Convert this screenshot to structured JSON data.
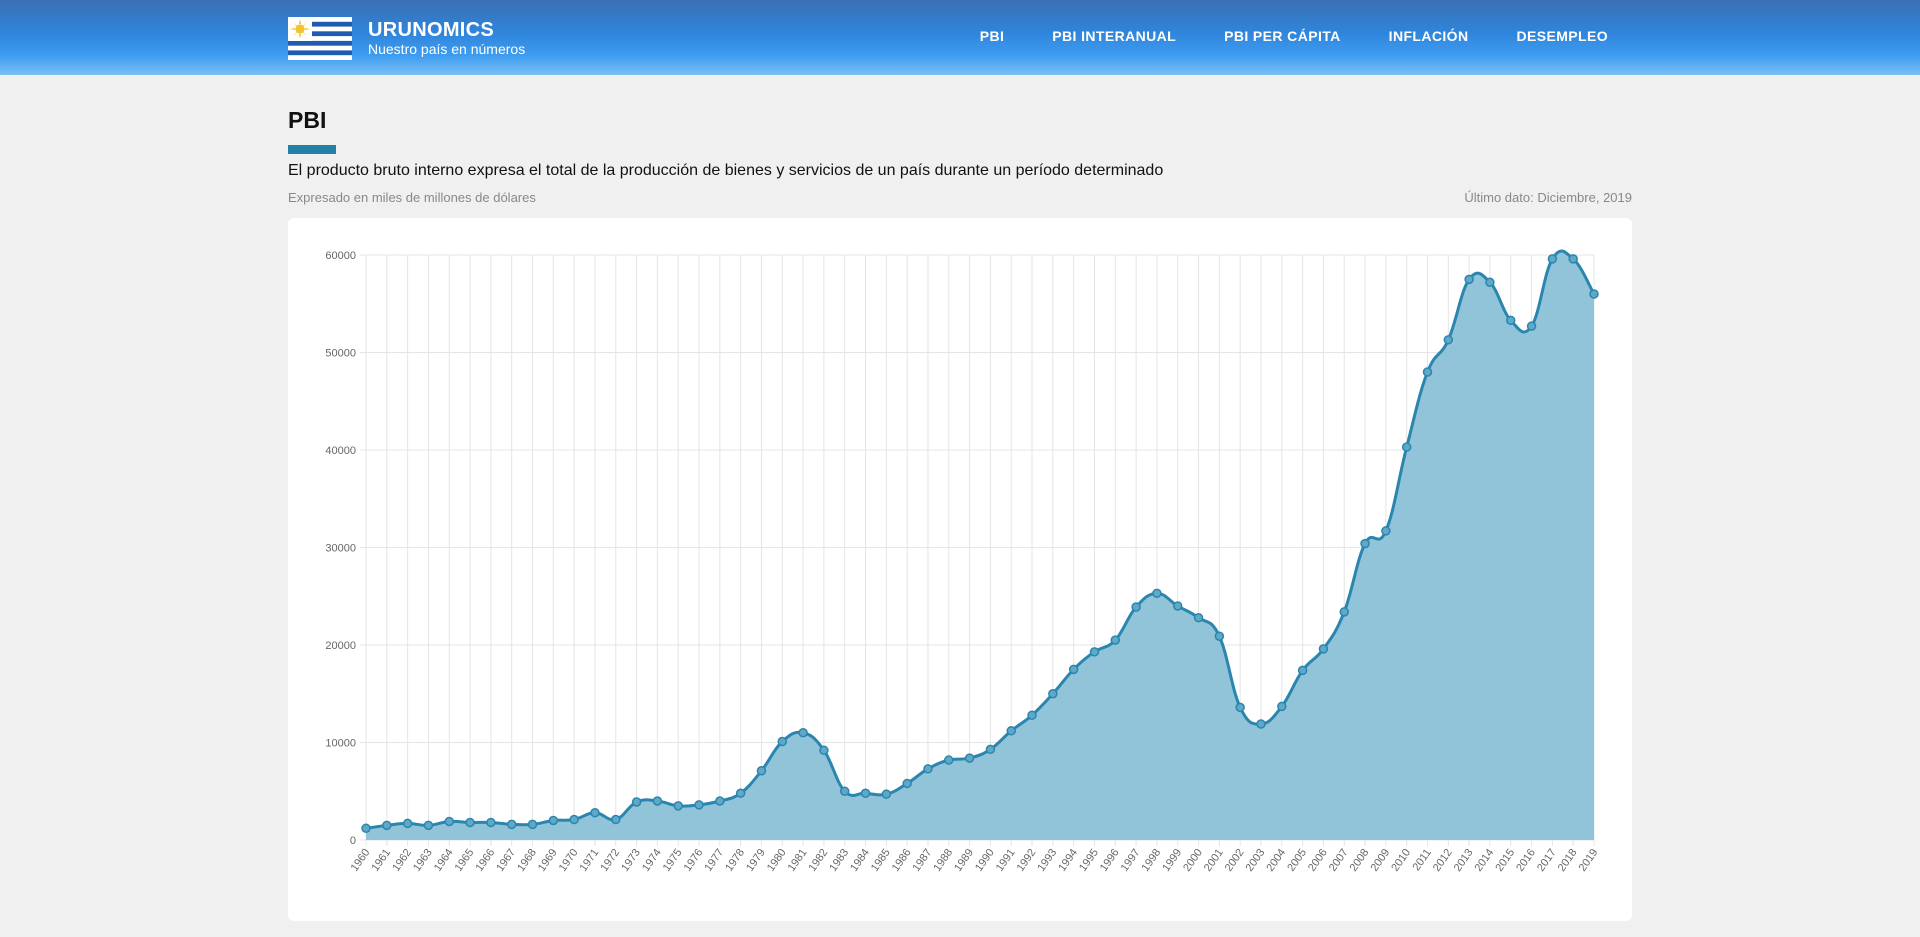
{
  "header": {
    "brand_name": "URUNOMICS",
    "brand_tagline": "Nuestro país en números",
    "nav": [
      {
        "label": "PBI"
      },
      {
        "label": "PBI INTERANUAL"
      },
      {
        "label": "PBI PER CÁPITA"
      },
      {
        "label": "INFLACIÓN"
      },
      {
        "label": "DESEMPLEO"
      }
    ]
  },
  "page": {
    "title": "PBI",
    "description": "El producto bruto interno expresa el total de la producción de bienes y servicios de un país durante un período determinado",
    "unit_note": "Expresado en miles de millones de dólares",
    "last_data": "Último dato: Diciembre, 2019"
  },
  "colors": {
    "accent": "#2380a8",
    "line": "#2a86ae",
    "fill": "#8bc1d6"
  },
  "chart_data": {
    "type": "area",
    "title": "",
    "xlabel": "",
    "ylabel": "",
    "ylim": [
      0,
      60000
    ],
    "yticks": [
      0,
      10000,
      20000,
      30000,
      40000,
      50000,
      60000
    ],
    "grid": true,
    "x": [
      "1960",
      "1961",
      "1962",
      "1963",
      "1964",
      "1965",
      "1966",
      "1967",
      "1968",
      "1969",
      "1970",
      "1971",
      "1972",
      "1973",
      "1974",
      "1975",
      "1976",
      "1977",
      "1978",
      "1979",
      "1980",
      "1981",
      "1982",
      "1983",
      "1984",
      "1985",
      "1986",
      "1987",
      "1988",
      "1989",
      "1990",
      "1991",
      "1992",
      "1993",
      "1994",
      "1995",
      "1996",
      "1997",
      "1998",
      "1999",
      "2000",
      "2001",
      "2002",
      "2003",
      "2004",
      "2005",
      "2006",
      "2007",
      "2008",
      "2009",
      "2010",
      "2011",
      "2012",
      "2013",
      "2014",
      "2015",
      "2016",
      "2017",
      "2018",
      "2019"
    ],
    "series": [
      {
        "values": [
          1200,
          1500,
          1700,
          1500,
          1900,
          1800,
          1800,
          1600,
          1600,
          2000,
          2100,
          2800,
          2100,
          3900,
          4000,
          3500,
          3600,
          4000,
          4800,
          7100,
          10100,
          11000,
          9200,
          5000,
          4800,
          4700,
          5800,
          7300,
          8200,
          8400,
          9300,
          11200,
          12800,
          15000,
          17500,
          19300,
          20500,
          23900,
          25300,
          24000,
          22800,
          20900,
          13600,
          11900,
          13700,
          17400,
          19600,
          23400,
          30400,
          31700,
          40300,
          48000,
          51300,
          57500,
          57200,
          53300,
          52700,
          59600,
          59600,
          56000
        ]
      }
    ]
  }
}
